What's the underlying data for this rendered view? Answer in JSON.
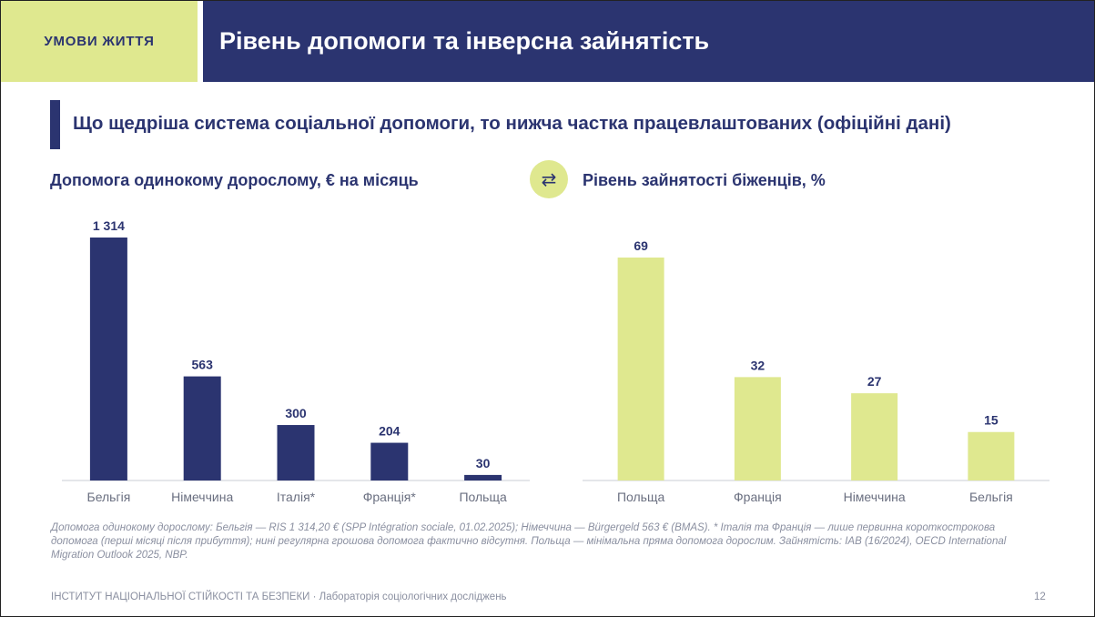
{
  "header": {
    "tag": "УМОВИ ЖИТТЯ",
    "title": "Рівень допомоги та інверсна зайнятість"
  },
  "subtitle": "Що щедріша система соціальної допомоги, то нижча частка працевлаштованих (офіційні дані)",
  "icons": {
    "swap": "swap-arrows-icon"
  },
  "colors": {
    "navy": "#2b3470",
    "lime": "#dfe88f"
  },
  "chart_data": [
    {
      "type": "bar",
      "title": "Допомога одинокому дорослому, € на місяць",
      "categories": [
        "Бельгія",
        "Німеччина",
        "Італія*",
        "Франція*",
        "Польща"
      ],
      "values": [
        1314,
        563,
        300,
        204,
        30
      ],
      "value_labels": [
        "1 314",
        "563",
        "300",
        "204",
        "30"
      ],
      "ylim": [
        0,
        1314
      ],
      "grid": false,
      "color": "#2b3470"
    },
    {
      "type": "bar",
      "title": "Рівень зайнятості біженців, %",
      "categories": [
        "Польща",
        "Франція",
        "Німеччина",
        "Бельгія"
      ],
      "values": [
        69,
        32,
        27,
        15
      ],
      "value_labels": [
        "69",
        "32",
        "27",
        "15"
      ],
      "ylim": [
        0,
        69
      ],
      "grid": false,
      "color": "#dfe88f"
    }
  ],
  "note": "Допомога одинокому дорослому: Бельгія — RIS 1 314,20 € (SPP Intégration sociale, 01.02.2025); Німеччина — Bürgergeld 563 € (BMAS). * Італія та Франція — лише первинна короткострокова допомога (перші місяці після прибуття); нині регулярна грошова допомога фактично відсутня. Польща — мінімальна пряма допомога дорослим. Зайнятість: IAB (16/2024), OECD International Migration Outlook 2025, NBP.",
  "footer": {
    "org": "ІНСТИТУТ НАЦІОНАЛЬНОЇ СТІЙКОСТІ ТА БЕЗПЕКИ  ·  Лабораторія соціологічних досліджень",
    "page": "12"
  }
}
